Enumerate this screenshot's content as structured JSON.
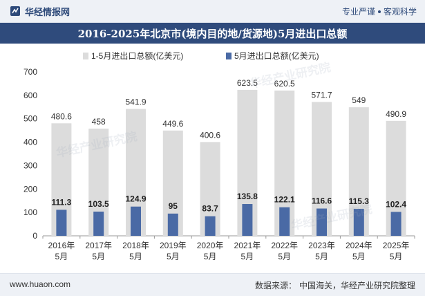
{
  "header": {
    "brand": "华经情报网",
    "tagline": [
      "专业严谨",
      "客观科学"
    ]
  },
  "title": "2016-2025年北京市(境内目的地/货源地)5月进出口总额",
  "footer": {
    "site": "www.huaon.com",
    "source_label": "数据来源：",
    "source_value": "中国海关，华经产业研究院整理"
  },
  "watermark": "华经产业研究院",
  "colors": {
    "cumulative": "#dcdcdc",
    "may": "#4a6aa5",
    "title_bg": "#2f4b7c"
  },
  "chart_data": {
    "type": "bar",
    "categories": [
      [
        "2016年",
        "5月"
      ],
      [
        "2017年",
        "5月"
      ],
      [
        "2018年",
        "5月"
      ],
      [
        "2019年",
        "5月"
      ],
      [
        "2020年",
        "5月"
      ],
      [
        "2021年",
        "5月"
      ],
      [
        "2022年",
        "5月"
      ],
      [
        "2023年",
        "5月"
      ],
      [
        "2024年",
        "5月"
      ],
      [
        "2025年",
        "5月"
      ]
    ],
    "series": [
      {
        "name": "1-5月进出口总额(亿美元)",
        "values": [
          480.6,
          458,
          541.9,
          449.6,
          400.6,
          623.5,
          620.5,
          571.7,
          549,
          490.9
        ]
      },
      {
        "name": "5月进出口总额(亿美元)",
        "values": [
          111.3,
          103.5,
          124.9,
          95,
          83.7,
          135.8,
          122.1,
          116.6,
          115.3,
          102.4
        ]
      }
    ],
    "ylim": [
      0,
      700
    ],
    "yticks": [
      0,
      100,
      200,
      300,
      400,
      500,
      600,
      700
    ],
    "legend_position": "top-center",
    "grid": false
  }
}
